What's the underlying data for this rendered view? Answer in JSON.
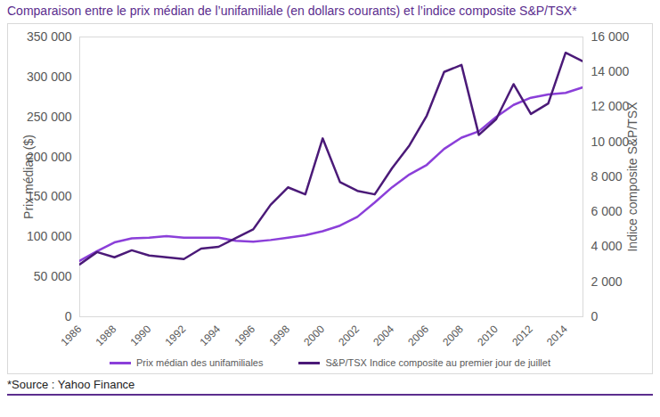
{
  "chart_data": {
    "type": "line",
    "title": "Comparaison entre le prix médian de l’unifamiliale (en dollars courants) et l’indice composite S&P/TSX*",
    "caption": "*Source : Yahoo Finance",
    "y_label": "Prix médian ($)",
    "y2_label": "Indice composite S&P/TSX",
    "x": [
      1986,
      1987,
      1988,
      1989,
      1990,
      1991,
      1992,
      1993,
      1994,
      1995,
      1996,
      1997,
      1998,
      1999,
      2000,
      2001,
      2002,
      2003,
      2004,
      2005,
      2006,
      2007,
      2008,
      2009,
      2010,
      2011,
      2012,
      2013,
      2014,
      2015
    ],
    "xlim": [
      1986,
      2015
    ],
    "xticks": [
      1986,
      1988,
      1990,
      1992,
      1994,
      1996,
      1998,
      2000,
      2002,
      2004,
      2006,
      2008,
      2010,
      2012,
      2014
    ],
    "ylim": [
      0,
      350000
    ],
    "yticks": [
      0,
      {
        "value": 50000,
        "label": "50 000"
      },
      {
        "value": 100000,
        "label": "100 000"
      },
      {
        "value": 150000,
        "label": "150 000"
      },
      {
        "value": 200000,
        "label": "200 000"
      },
      {
        "value": 250000,
        "label": "250 000"
      },
      {
        "value": 300000,
        "label": "300 000"
      },
      {
        "value": 350000,
        "label": "350 000"
      }
    ],
    "y2lim": [
      0,
      16000
    ],
    "y2ticks": [
      0,
      {
        "value": 2000,
        "label": "2 000"
      },
      {
        "value": 4000,
        "label": "4 000"
      },
      {
        "value": 6000,
        "label": "6 000"
      },
      {
        "value": 8000,
        "label": "8 000"
      },
      {
        "value": 10000,
        "label": "10 000"
      },
      {
        "value": 12000,
        "label": "12 000"
      },
      {
        "value": 14000,
        "label": "14 000"
      },
      {
        "value": 16000,
        "label": "16 000"
      }
    ],
    "grid": false,
    "legend": "bottom",
    "series": [
      {
        "name": "Prix médian des unifamiliales",
        "color": "#8b3fd9",
        "values": [
          70000,
          82000,
          93000,
          98000,
          99000,
          101000,
          99000,
          99000,
          99000,
          95000,
          94000,
          96000,
          99000,
          102000,
          107000,
          114000,
          125000,
          143000,
          162000,
          178000,
          190000,
          210000,
          224000,
          232000,
          250000,
          265000,
          274000,
          278000,
          280000,
          287000
        ]
      },
      {
        "name": "S&P/TSX Indice composite au premier jour de juillet",
        "color": "#4b1a78",
        "axis": "y2",
        "values": [
          3000,
          3700,
          3400,
          3800,
          3500,
          3400,
          3300,
          3900,
          4000,
          4500,
          5000,
          6400,
          7400,
          7000,
          10200,
          7700,
          7200,
          7000,
          8500,
          9800,
          11500,
          14000,
          14400,
          10400,
          11300,
          13300,
          11600,
          12200,
          15100,
          14600
        ]
      }
    ]
  }
}
